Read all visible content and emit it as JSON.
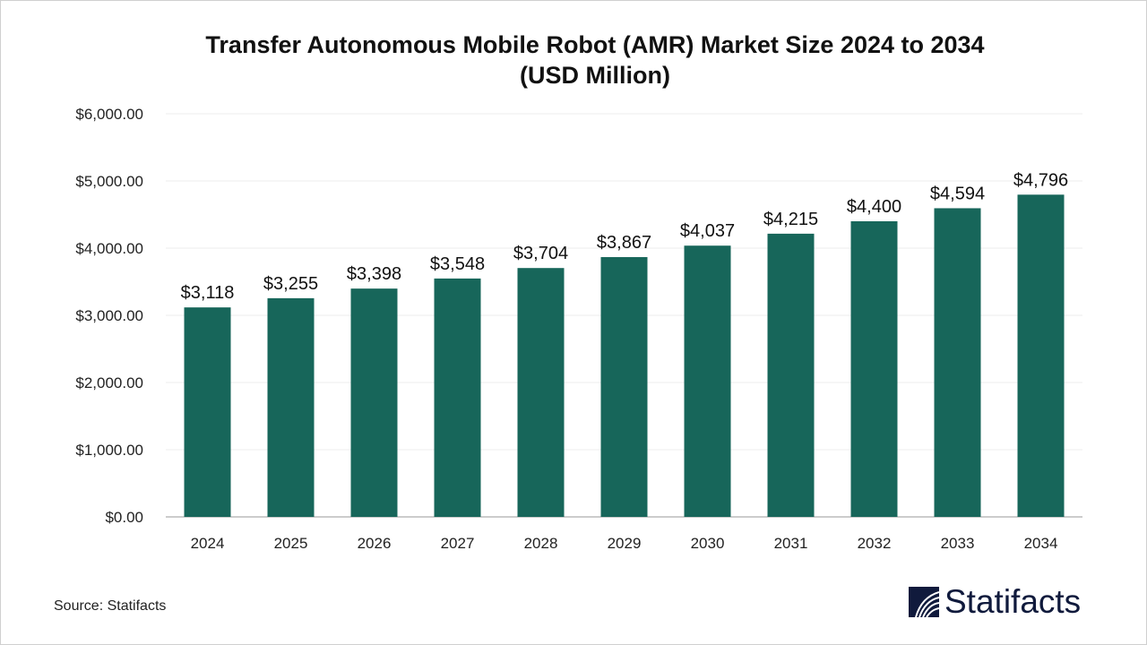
{
  "chart_data": {
    "type": "bar",
    "title": "Transfer Autonomous Mobile Robot (AMR) Market Size 2024 to 2034",
    "subtitle": "(USD Million)",
    "categories": [
      "2024",
      "2025",
      "2026",
      "2027",
      "2028",
      "2029",
      "2030",
      "2031",
      "2032",
      "2033",
      "2034"
    ],
    "values": [
      3118,
      3255,
      3398,
      3548,
      3704,
      3867,
      4037,
      4215,
      4400,
      4594,
      4796
    ],
    "data_labels": [
      "$3,118",
      "$3,255",
      "$3,398",
      "$3,548",
      "$3,704",
      "$3,867",
      "$4,037",
      "$4,215",
      "$4,400",
      "$4,594",
      "$4,796"
    ],
    "y_ticks": [
      "$0.00",
      "$1,000.00",
      "$2,000.00",
      "$3,000.00",
      "$4,000.00",
      "$5,000.00",
      "$6,000.00"
    ],
    "ylim": [
      0,
      6000
    ],
    "xlabel": "",
    "ylabel": "",
    "grid": true,
    "bar_color": "#17665a"
  },
  "source": "Source: Statifacts",
  "logo": {
    "text": "Statifacts",
    "color": "#101a3c"
  }
}
